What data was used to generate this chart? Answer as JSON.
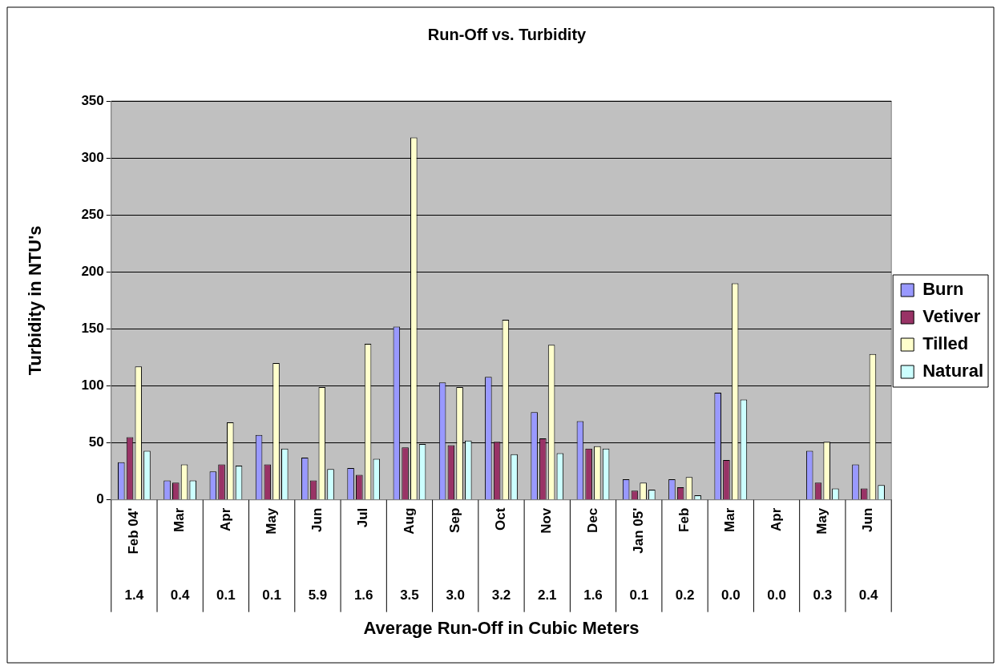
{
  "chart_data": {
    "type": "bar",
    "title": "Run-Off vs. Turbidity",
    "xlabel": "Average Run-Off in Cubic Meters",
    "ylabel": "Turbidity in NTU's",
    "categories": [
      "Feb 04'",
      "Mar",
      "Apr",
      "May",
      "Jun",
      "Jul",
      "Aug",
      "Sep",
      "Oct",
      "Nov",
      "Dec",
      "Jan 05'",
      "Feb",
      "Mar",
      "Apr",
      "May",
      "Jun"
    ],
    "series": [
      {
        "name": "Burn",
        "color": "#9999ff",
        "values": [
          33,
          17,
          25,
          57,
          37,
          28,
          152,
          103,
          108,
          77,
          69,
          18,
          18,
          94,
          0,
          43,
          31
        ]
      },
      {
        "name": "Vetiver",
        "color": "#993366",
        "values": [
          55,
          15,
          31,
          31,
          17,
          22,
          46,
          48,
          51,
          54,
          45,
          8,
          11,
          35,
          0,
          15,
          10
        ]
      },
      {
        "name": "Tilled",
        "color": "#ffffcc",
        "values": [
          117,
          31,
          68,
          120,
          99,
          137,
          318,
          99,
          158,
          136,
          47,
          15,
          20,
          190,
          0,
          51,
          128
        ]
      },
      {
        "name": "Natural",
        "color": "#ccffff",
        "values": [
          43,
          17,
          30,
          45,
          27,
          36,
          49,
          52,
          40,
          41,
          45,
          9,
          4,
          88,
          0,
          10,
          13
        ]
      }
    ],
    "annotations": [
      "1.4",
      "0.4",
      "0.1",
      "0.1",
      "5.9",
      "1.6",
      "3.5",
      "3.0",
      "3.2",
      "2.1",
      "1.6",
      "0.1",
      "0.2",
      "0.0",
      "0.0",
      "0.3",
      "0.4"
    ],
    "ylim": [
      0,
      350
    ],
    "yticks": [
      0,
      50,
      100,
      150,
      200,
      250,
      300,
      350
    ],
    "grid": "y",
    "legend": "right"
  }
}
